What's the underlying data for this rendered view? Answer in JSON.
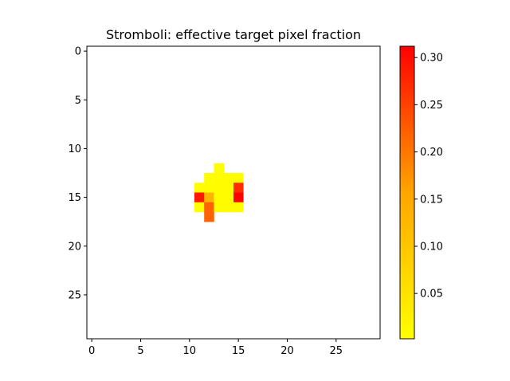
{
  "chart_data": {
    "type": "heatmap",
    "title": "Stromboli: effective target pixel fraction",
    "xlabel": "",
    "ylabel": "",
    "grid": false,
    "rows": 30,
    "cols": 30,
    "xlim": [
      -0.5,
      29.5
    ],
    "ylim": [
      29.5,
      -0.5
    ],
    "x_ticks": [
      "0",
      "5",
      "10",
      "15",
      "20",
      "25"
    ],
    "y_ticks": [
      "0",
      "5",
      "10",
      "15",
      "20",
      "25"
    ],
    "colormap": {
      "low": "#ffff00",
      "mid": "#ffa500",
      "high": "#ff0000"
    },
    "colorbar": {
      "vmin": 0.002,
      "vmax": 0.312,
      "ticks": [
        "0.05",
        "0.10",
        "0.15",
        "0.20",
        "0.25",
        "0.30"
      ]
    },
    "cells": [
      {
        "row": 12,
        "col": 13,
        "value": 0.005
      },
      {
        "row": 13,
        "col": 12,
        "value": 0.005
      },
      {
        "row": 13,
        "col": 13,
        "value": 0.005
      },
      {
        "row": 13,
        "col": 14,
        "value": 0.005
      },
      {
        "row": 13,
        "col": 15,
        "value": 0.005
      },
      {
        "row": 14,
        "col": 11,
        "value": 0.005
      },
      {
        "row": 14,
        "col": 12,
        "value": 0.005
      },
      {
        "row": 14,
        "col": 13,
        "value": 0.005
      },
      {
        "row": 14,
        "col": 14,
        "value": 0.005
      },
      {
        "row": 14,
        "col": 15,
        "value": 0.27
      },
      {
        "row": 15,
        "col": 11,
        "value": 0.29
      },
      {
        "row": 15,
        "col": 12,
        "value": 0.13
      },
      {
        "row": 15,
        "col": 13,
        "value": 0.005
      },
      {
        "row": 15,
        "col": 14,
        "value": 0.005
      },
      {
        "row": 15,
        "col": 15,
        "value": 0.31
      },
      {
        "row": 16,
        "col": 11,
        "value": 0.005
      },
      {
        "row": 16,
        "col": 12,
        "value": 0.22
      },
      {
        "row": 16,
        "col": 13,
        "value": 0.005
      },
      {
        "row": 16,
        "col": 14,
        "value": 0.005
      },
      {
        "row": 16,
        "col": 15,
        "value": 0.005
      },
      {
        "row": 17,
        "col": 12,
        "value": 0.22
      }
    ]
  }
}
